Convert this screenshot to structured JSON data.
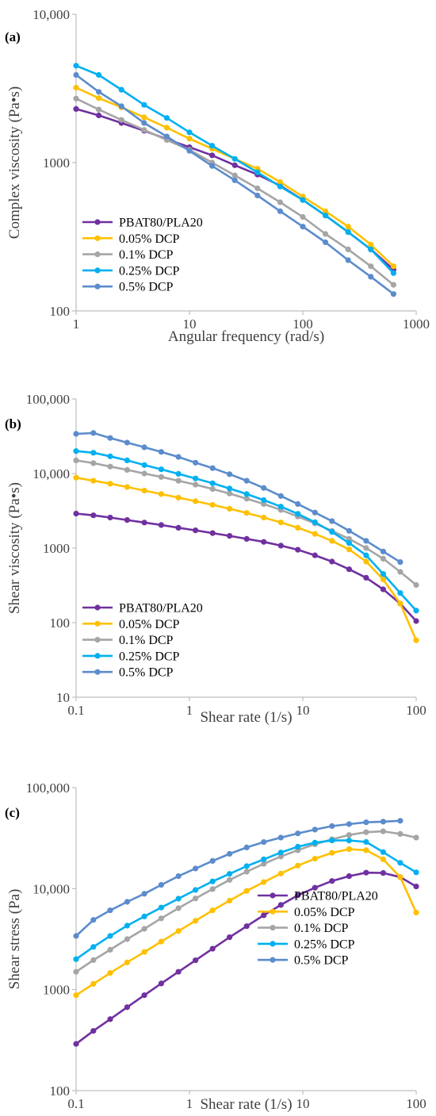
{
  "colors": {
    "purple": "#7030a0",
    "gold": "#ffc000",
    "gray": "#a5a5a5",
    "cyan": "#00b0f0",
    "blue": "#5b8ccc",
    "axis": "#bfbfbf",
    "text": "#404040"
  },
  "chart_data": [
    {
      "type": "line",
      "panel_label": "(a)",
      "xlabel": "Angular frequency (rad/s)",
      "ylabel": "Complex viscosity (Pa•s)",
      "xscale": "log",
      "yscale": "log",
      "xlim": [
        1,
        1000
      ],
      "ylim": [
        100,
        10000
      ],
      "x_ticks": [
        1,
        10,
        100,
        1000
      ],
      "x_tick_labels": [
        "1",
        "10",
        "100",
        "1000"
      ],
      "y_ticks": [
        100,
        1000,
        10000
      ],
      "y_tick_labels": [
        "100",
        "1000",
        "10,000"
      ],
      "legend_position": "bottom-left",
      "x": [
        1,
        1.585,
        2.512,
        3.981,
        6.31,
        10,
        15.85,
        25.12,
        39.81,
        63.1,
        100,
        158.5,
        251.2,
        398.1,
        631
      ],
      "series": [
        {
          "name": "PBAT80/PLA20",
          "color": "#7030a0",
          "values": [
            2300,
            2080,
            1850,
            1640,
            1440,
            1270,
            1120,
            960,
            830,
            700,
            560,
            440,
            340,
            260,
            190
          ]
        },
        {
          "name": "0.05% DCP",
          "color": "#ffc000",
          "values": [
            3200,
            2720,
            2360,
            2020,
            1720,
            1450,
            1240,
            1060,
            910,
            740,
            590,
            470,
            370,
            280,
            200
          ]
        },
        {
          "name": "0.1% DCP",
          "color": "#a5a5a5",
          "values": [
            2700,
            2280,
            1940,
            1660,
            1420,
            1220,
            1000,
            820,
            670,
            540,
            430,
            330,
            260,
            200,
            150
          ]
        },
        {
          "name": "0.25% DCP",
          "color": "#00b0f0",
          "values": [
            4500,
            3900,
            3100,
            2450,
            2000,
            1600,
            1300,
            1060,
            860,
            690,
            560,
            440,
            340,
            260,
            180
          ]
        },
        {
          "name": "0.5% DCP",
          "color": "#5b8ccc",
          "values": [
            3900,
            3000,
            2400,
            1850,
            1500,
            1200,
            950,
            760,
            600,
            470,
            370,
            290,
            220,
            170,
            130
          ]
        }
      ]
    },
    {
      "type": "line",
      "panel_label": "(b)",
      "xlabel": "Shear rate (1/s)",
      "ylabel": "Shear viscosity (Pa•s)",
      "xscale": "log",
      "yscale": "log",
      "xlim": [
        0.1,
        100
      ],
      "ylim": [
        10,
        100000
      ],
      "x_ticks": [
        0.1,
        1,
        10,
        100
      ],
      "x_tick_labels": [
        "0.1",
        "1",
        "10",
        "100"
      ],
      "y_ticks": [
        10,
        100,
        1000,
        10000,
        100000
      ],
      "y_tick_labels": [
        "10",
        "100",
        "1000",
        "10,000",
        "100,000"
      ],
      "legend_position": "bottom-left",
      "series": [
        {
          "name": "PBAT80/PLA20",
          "color": "#7030a0",
          "x": [
            0.1,
            0.142,
            0.2,
            0.282,
            0.4,
            0.564,
            0.8,
            1.13,
            1.6,
            2.26,
            3.2,
            4.52,
            6.4,
            9.04,
            12.8,
            18.1,
            25.6,
            36.2,
            51.2,
            72.4,
            100
          ],
          "values": [
            2900,
            2750,
            2570,
            2380,
            2200,
            2040,
            1870,
            1730,
            1590,
            1460,
            1330,
            1210,
            1080,
            950,
            800,
            660,
            520,
            400,
            280,
            180,
            105
          ]
        },
        {
          "name": "0.05% DCP",
          "color": "#ffc000",
          "x": [
            0.1,
            0.142,
            0.2,
            0.282,
            0.4,
            0.564,
            0.8,
            1.13,
            1.6,
            2.26,
            3.2,
            4.52,
            6.4,
            9.04,
            12.8,
            18.1,
            25.6,
            36.2,
            51.2,
            72.4,
            100
          ],
          "values": [
            8800,
            8000,
            7300,
            6600,
            5900,
            5300,
            4750,
            4250,
            3800,
            3370,
            2960,
            2570,
            2210,
            1870,
            1550,
            1250,
            960,
            660,
            380,
            180,
            58
          ]
        },
        {
          "name": "0.1% DCP",
          "color": "#a5a5a5",
          "x": [
            0.1,
            0.142,
            0.2,
            0.282,
            0.4,
            0.564,
            0.8,
            1.13,
            1.6,
            2.26,
            3.2,
            4.52,
            6.4,
            9.04,
            12.8,
            18.1,
            25.6,
            36.2,
            51.2,
            72.4,
            100
          ],
          "values": [
            15000,
            13800,
            12400,
            11200,
            10000,
            9000,
            8000,
            7100,
            6200,
            5400,
            4600,
            3900,
            3250,
            2650,
            2150,
            1700,
            1330,
            1000,
            720,
            480,
            320
          ]
        },
        {
          "name": "0.25% DCP",
          "color": "#00b0f0",
          "x": [
            0.1,
            0.142,
            0.2,
            0.282,
            0.4,
            0.564,
            0.8,
            1.13,
            1.6,
            2.26,
            3.2,
            4.52,
            6.4,
            9.04,
            12.8,
            18.1,
            25.6,
            36.2,
            51.2,
            72.4,
            100
          ],
          "values": [
            20000,
            19000,
            17000,
            15000,
            13000,
            11400,
            9900,
            8600,
            7400,
            6300,
            5300,
            4400,
            3600,
            2880,
            2220,
            1650,
            1170,
            800,
            450,
            250,
            145
          ]
        },
        {
          "name": "0.5% DCP",
          "color": "#5b8ccc",
          "x": [
            0.1,
            0.142,
            0.2,
            0.282,
            0.4,
            0.564,
            0.8,
            1.13,
            1.6,
            2.26,
            3.2,
            4.52,
            6.4,
            9.04,
            12.8,
            18.1,
            25.6,
            36.2,
            51.2,
            72.4
          ],
          "values": [
            34000,
            35000,
            30000,
            26000,
            22500,
            19500,
            16700,
            14000,
            11800,
            9800,
            8000,
            6400,
            5000,
            3900,
            3000,
            2300,
            1700,
            1250,
            900,
            650
          ]
        }
      ]
    },
    {
      "type": "line",
      "panel_label": "(c)",
      "xlabel": "Shear rate (1/s)",
      "ylabel": "Shear stress (Pa)",
      "xscale": "log",
      "yscale": "log",
      "xlim": [
        0.1,
        100
      ],
      "ylim": [
        100,
        100000
      ],
      "x_ticks": [
        0.1,
        1,
        10,
        100
      ],
      "x_tick_labels": [
        "0.1",
        "1",
        "10",
        "100"
      ],
      "y_ticks": [
        100,
        1000,
        10000,
        100000
      ],
      "y_tick_labels": [
        "100",
        "1000",
        "10,000",
        "100,000"
      ],
      "legend_position": "bottom-right",
      "series": [
        {
          "name": "PBAT80/PLA20",
          "color": "#7030a0",
          "x": [
            0.1,
            0.142,
            0.2,
            0.282,
            0.4,
            0.564,
            0.8,
            1.13,
            1.6,
            2.26,
            3.2,
            4.52,
            6.4,
            9.04,
            12.8,
            18.1,
            25.6,
            36.2,
            51.2,
            72.4,
            100
          ],
          "values": [
            290,
            390,
            510,
            670,
            880,
            1150,
            1500,
            1950,
            2540,
            3300,
            4250,
            5450,
            6900,
            8600,
            10200,
            11900,
            13300,
            14400,
            14300,
            13000,
            10500
          ]
        },
        {
          "name": "0.05% DCP",
          "color": "#ffc000",
          "x": [
            0.1,
            0.142,
            0.2,
            0.282,
            0.4,
            0.564,
            0.8,
            1.13,
            1.6,
            2.26,
            3.2,
            4.52,
            6.4,
            9.04,
            12.8,
            18.1,
            25.6,
            36.2,
            51.2,
            72.4,
            100
          ],
          "values": [
            880,
            1140,
            1460,
            1860,
            2360,
            2990,
            3800,
            4800,
            6100,
            7600,
            9500,
            11600,
            14100,
            16900,
            19800,
            22600,
            24600,
            24000,
            19500,
            13000,
            5800
          ]
        },
        {
          "name": "0.1% DCP",
          "color": "#a5a5a5",
          "x": [
            0.1,
            0.142,
            0.2,
            0.282,
            0.4,
            0.564,
            0.8,
            1.13,
            1.6,
            2.26,
            3.2,
            4.52,
            6.4,
            9.04,
            12.8,
            18.1,
            25.6,
            36.2,
            51.2,
            72.4,
            100
          ],
          "values": [
            1500,
            1960,
            2480,
            3160,
            4000,
            5080,
            6400,
            8000,
            9900,
            12200,
            14700,
            17600,
            20800,
            24000,
            27500,
            30800,
            34000,
            36200,
            36900,
            34800,
            32000
          ]
        },
        {
          "name": "0.25% DCP",
          "color": "#00b0f0",
          "x": [
            0.1,
            0.142,
            0.2,
            0.282,
            0.4,
            0.564,
            0.8,
            1.13,
            1.6,
            2.26,
            3.2,
            4.52,
            6.4,
            9.04,
            12.8,
            18.1,
            25.6,
            36.2,
            51.2,
            72.4,
            100
          ],
          "values": [
            2000,
            2650,
            3400,
            4300,
            5300,
            6500,
            7950,
            9700,
            11800,
            14000,
            16700,
            19500,
            22800,
            26000,
            28500,
            30000,
            30000,
            29000,
            23000,
            18000,
            14500
          ]
        },
        {
          "name": "0.5% DCP",
          "color": "#5b8ccc",
          "x": [
            0.1,
            0.142,
            0.2,
            0.282,
            0.4,
            0.564,
            0.8,
            1.13,
            1.6,
            2.26,
            3.2,
            4.52,
            6.4,
            9.04,
            12.8,
            18.1,
            25.6,
            36.2,
            51.2,
            72.4
          ],
          "values": [
            3400,
            4900,
            6100,
            7400,
            8900,
            10900,
            13300,
            15800,
            18800,
            22100,
            25600,
            28900,
            32000,
            35200,
            38400,
            41600,
            43500,
            45400,
            46000,
            47000
          ]
        }
      ]
    }
  ]
}
